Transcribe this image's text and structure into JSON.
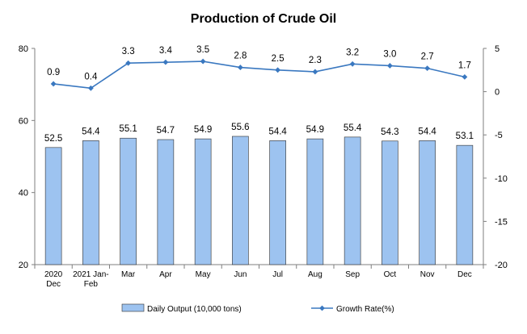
{
  "chart_data": {
    "type": "bar+line",
    "title": "Production of Crude Oil",
    "categories": [
      [
        "2020",
        "Dec"
      ],
      [
        "2021 Jan-",
        "Feb"
      ],
      [
        "Mar"
      ],
      [
        "Apr"
      ],
      [
        "May"
      ],
      [
        "Jun"
      ],
      [
        "Jul"
      ],
      [
        "Aug"
      ],
      [
        "Sep"
      ],
      [
        "Oct"
      ],
      [
        "Nov"
      ],
      [
        "Dec"
      ]
    ],
    "series": [
      {
        "name": "Daily Output (10,000 tons)",
        "type": "bar",
        "axis": "left",
        "color": "#9DC3F0",
        "values": [
          52.5,
          54.4,
          55.1,
          54.7,
          54.9,
          55.6,
          54.4,
          54.9,
          55.4,
          54.3,
          54.4,
          53.1
        ],
        "labels": [
          "52.5",
          "54.4",
          "55.1",
          "54.7",
          "54.9",
          "55.6",
          "54.4",
          "54.9",
          "55.4",
          "54.3",
          "54.4",
          "53.1"
        ]
      },
      {
        "name": "Growth Rate(%)",
        "type": "line",
        "axis": "right",
        "color": "#3A78C0",
        "values": [
          0.9,
          0.4,
          3.3,
          3.4,
          3.5,
          2.8,
          2.5,
          2.3,
          3.2,
          3.0,
          2.7,
          1.7
        ],
        "labels": [
          "0.9",
          "0.4",
          "3.3",
          "3.4",
          "3.5",
          "2.8",
          "2.5",
          "2.3",
          "3.2",
          "3.0",
          "2.7",
          "1.7"
        ]
      }
    ],
    "y_left": {
      "range": [
        20,
        80
      ],
      "ticks": [
        20,
        40,
        60,
        80
      ]
    },
    "y_right": {
      "range": [
        -20,
        5
      ],
      "ticks": [
        -20,
        -15,
        -10,
        -5,
        0,
        5
      ]
    },
    "grid": false,
    "legend_position": "bottom"
  }
}
